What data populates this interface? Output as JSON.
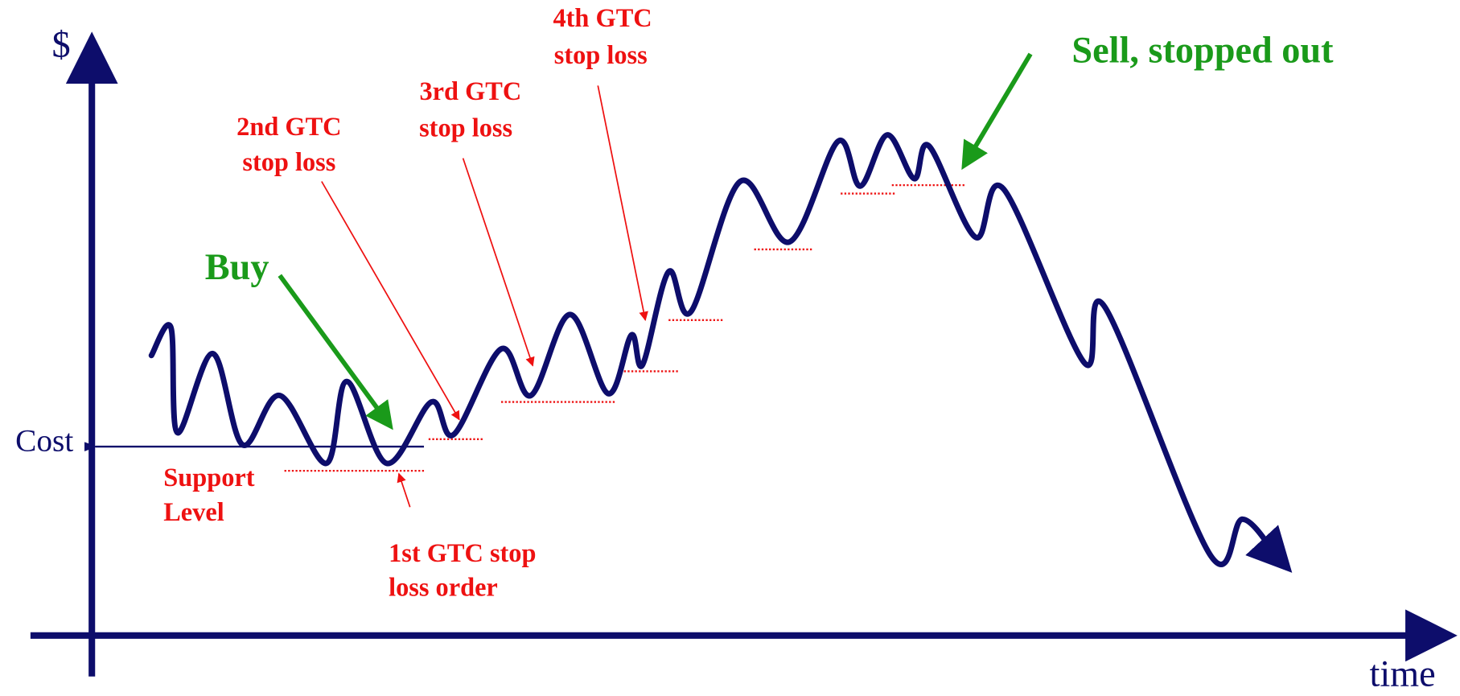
{
  "axes": {
    "y_label": "$",
    "x_label": "time",
    "cost_label": "Cost"
  },
  "buy": {
    "lines": [
      "Buy"
    ]
  },
  "sell": {
    "lines": [
      "Sell, stopped out"
    ]
  },
  "support": {
    "lines": [
      "Support",
      "Level"
    ]
  },
  "stops": [
    {
      "lines": [
        "1st GTC stop",
        "loss order"
      ]
    },
    {
      "lines": [
        "2nd GTC",
        "stop loss"
      ]
    },
    {
      "lines": [
        "3rd GTC",
        "stop loss"
      ]
    },
    {
      "lines": [
        "4th GTC",
        "stop loss"
      ]
    }
  ]
}
